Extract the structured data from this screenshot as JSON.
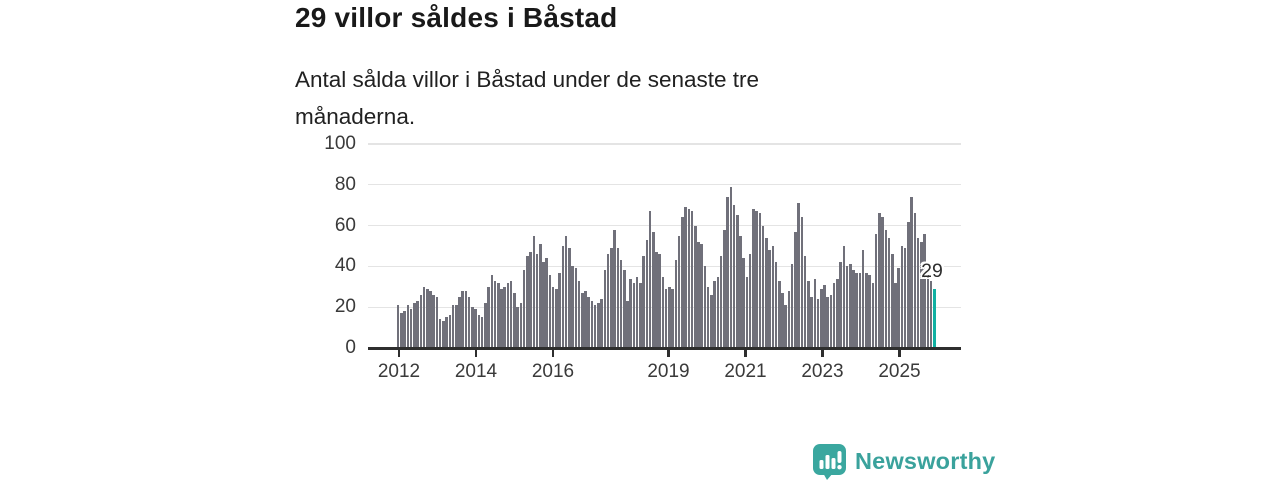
{
  "header": {
    "title": "29 villor såldes i Båstad",
    "subtitle": "Antal sålda villor i Båstad under de senaste tre månaderna."
  },
  "chart_data": {
    "type": "bar",
    "title": "29 villor såldes i Båstad",
    "subtitle": "Antal sålda villor i Båstad under de senaste tre månaderna.",
    "x_monthly_start": "2012-01",
    "x_monthly_end": "2025-11",
    "ylim": [
      0,
      100
    ],
    "yticks": [
      0,
      20,
      40,
      60,
      80,
      100
    ],
    "xticks": [
      {
        "label": "2012",
        "year": 2012
      },
      {
        "label": "2014",
        "year": 2014
      },
      {
        "label": "2016",
        "year": 2016
      },
      {
        "label": "2019",
        "year": 2019
      },
      {
        "label": "2021",
        "year": 2021
      },
      {
        "label": "2023",
        "year": 2023
      },
      {
        "label": "2025",
        "year": 2025
      }
    ],
    "grid": true,
    "bar_color": "#70707a",
    "highlight_color": "#10b0a2",
    "values": [
      21,
      17,
      18,
      21,
      19,
      22,
      23,
      26,
      30,
      29,
      28,
      26,
      25,
      14,
      13,
      15,
      16,
      21,
      21,
      25,
      28,
      28,
      25,
      20,
      19,
      16,
      15,
      22,
      30,
      36,
      33,
      32,
      29,
      30,
      32,
      33,
      27,
      20,
      22,
      38,
      45,
      47,
      55,
      46,
      51,
      42,
      44,
      36,
      30,
      29,
      37,
      50,
      55,
      49,
      40,
      39,
      33,
      27,
      28,
      25,
      23,
      21,
      22,
      24,
      38,
      46,
      49,
      58,
      49,
      43,
      38,
      23,
      34,
      32,
      35,
      32,
      45,
      53,
      67,
      57,
      47,
      46,
      35,
      29,
      30,
      29,
      43,
      55,
      64,
      69,
      68,
      67,
      60,
      52,
      51,
      40,
      30,
      26,
      33,
      35,
      45,
      58,
      74,
      79,
      70,
      65,
      55,
      44,
      35,
      46,
      68,
      67,
      66,
      60,
      54,
      48,
      50,
      42,
      33,
      27,
      21,
      28,
      41,
      57,
      71,
      64,
      45,
      33,
      25,
      34,
      24,
      29,
      31,
      25,
      26,
      32,
      34,
      42,
      50,
      40,
      41,
      38,
      37,
      37,
      48,
      37,
      36,
      32,
      56,
      66,
      64,
      58,
      54,
      46,
      32,
      39,
      50,
      49,
      62,
      74,
      66,
      54,
      52,
      56,
      38,
      33,
      29
    ],
    "highlight": {
      "index_from_end": 1,
      "value": 29,
      "label": "29"
    },
    "legend": null
  },
  "annotation": {
    "last_value_label": "29"
  },
  "footer": {
    "brand": "Newsworthy",
    "logo_icon": "newsworthy-speech-bubble-bar-chart"
  },
  "colors": {
    "bar": "#70707a",
    "highlight": "#10b0a2",
    "brand": "#3aa29c",
    "axis": "#2e2e2e",
    "grid": "#e4e4e4",
    "text": "#212121"
  }
}
